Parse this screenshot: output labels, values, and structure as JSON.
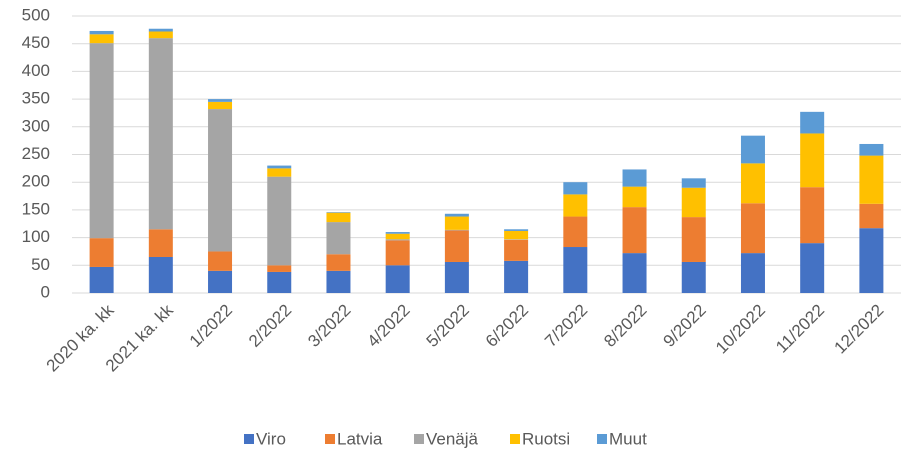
{
  "chart_data": {
    "type": "stacked_bar",
    "categories": [
      "2020 ka. kk",
      "2021 ka. kk",
      "1/2022",
      "2/2022",
      "3/2022",
      "4/2022",
      "5/2022",
      "6/2022",
      "7/2022",
      "8/2022",
      "9/2022",
      "10/2022",
      "11/2022",
      "12/2022"
    ],
    "series": [
      {
        "name": "Viro",
        "color": "#4472c4",
        "values": [
          47,
          65,
          40,
          38,
          40,
          50,
          56,
          58,
          83,
          72,
          56,
          72,
          90,
          117
        ]
      },
      {
        "name": "Latvia",
        "color": "#ed7d31",
        "values": [
          52,
          50,
          35,
          12,
          30,
          45,
          57,
          38,
          55,
          83,
          81,
          90,
          101,
          44
        ]
      },
      {
        "name": "Venäjä",
        "color": "#a5a5a5",
        "values": [
          352,
          345,
          257,
          160,
          58,
          2,
          1,
          1,
          0,
          0,
          0,
          0,
          0,
          0
        ]
      },
      {
        "name": "Ruotsi",
        "color": "#ffc000",
        "values": [
          16,
          12,
          13,
          15,
          17,
          10,
          24,
          15,
          40,
          37,
          53,
          72,
          97,
          87
        ]
      },
      {
        "name": "Muut",
        "color": "#5b9bd5",
        "values": [
          6,
          5,
          5,
          5,
          1,
          3,
          5,
          3,
          22,
          31,
          17,
          50,
          39,
          21
        ]
      }
    ],
    "ylim": [
      0,
      500
    ],
    "yticks": [
      0,
      50,
      100,
      150,
      200,
      250,
      300,
      350,
      400,
      450,
      500
    ],
    "grid": true,
    "legend": "bottom"
  }
}
